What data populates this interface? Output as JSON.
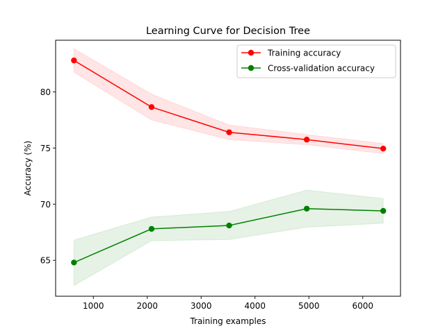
{
  "chart_data": {
    "type": "line",
    "title": "Learning Curve for Decision Tree",
    "xlabel": "Training examples",
    "ylabel": "Accuracy (%)",
    "xlim": [
      300,
      6700
    ],
    "ylim": [
      61.8,
      84.6
    ],
    "xticks": [
      1000,
      2000,
      3000,
      4000,
      5000,
      6000
    ],
    "yticks": [
      65,
      70,
      75,
      80
    ],
    "grid": false,
    "legend_position": "top-right",
    "x": [
      640,
      2080,
      3520,
      4960,
      6380
    ],
    "series": [
      {
        "name": "Training accuracy",
        "color": "#ff0000",
        "band_color": "#ff0000",
        "values": [
          82.8,
          78.65,
          76.4,
          75.75,
          74.95
        ],
        "upper": [
          83.85,
          79.8,
          77.05,
          76.2,
          75.4
        ],
        "lower": [
          81.75,
          77.5,
          75.75,
          75.3,
          74.5
        ]
      },
      {
        "name": "Cross-validation accuracy",
        "color": "#008000",
        "band_color": "#008000",
        "values": [
          64.8,
          67.8,
          68.1,
          69.6,
          69.4
        ],
        "upper": [
          66.8,
          68.85,
          69.35,
          71.25,
          70.5
        ],
        "lower": [
          62.75,
          66.75,
          66.85,
          67.95,
          68.3
        ]
      }
    ]
  }
}
